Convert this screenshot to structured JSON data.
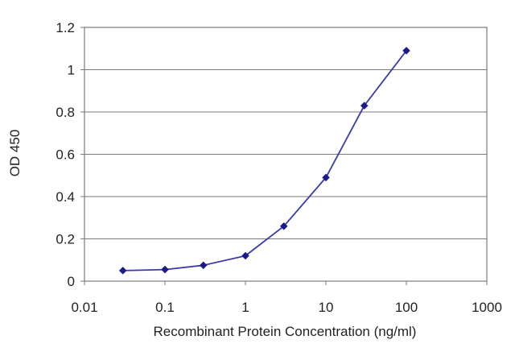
{
  "chart_data": {
    "type": "line",
    "title": "",
    "xlabel": "Recombinant Protein Concentration (ng/ml)",
    "ylabel": "OD 450",
    "x_scale": "log",
    "xlim": [
      0.01,
      1000
    ],
    "ylim": [
      0,
      1.2
    ],
    "x_ticks": [
      0.01,
      0.1,
      1,
      10,
      100,
      1000
    ],
    "x_tick_labels": [
      "0.01",
      "0.1",
      "1",
      "10",
      "100",
      "1000"
    ],
    "y_ticks": [
      0,
      0.2,
      0.4,
      0.6,
      0.8,
      1,
      1.2
    ],
    "y_tick_labels": [
      "0",
      "0.2",
      "0.4",
      "0.6",
      "0.8",
      "1",
      "1.2"
    ],
    "grid": "horizontal",
    "legend": "none",
    "series": [
      {
        "x": [
          0.03,
          0.1,
          0.3,
          1,
          3,
          10,
          30,
          100
        ],
        "y": [
          0.05,
          0.055,
          0.075,
          0.12,
          0.26,
          0.49,
          0.83,
          1.09
        ],
        "color": "#3b3ba8",
        "marker": "diamond",
        "marker_color": "#1a1a8c"
      }
    ],
    "colors": {
      "grid": "#7a7a7a",
      "frame": "#7a7a7a"
    }
  }
}
